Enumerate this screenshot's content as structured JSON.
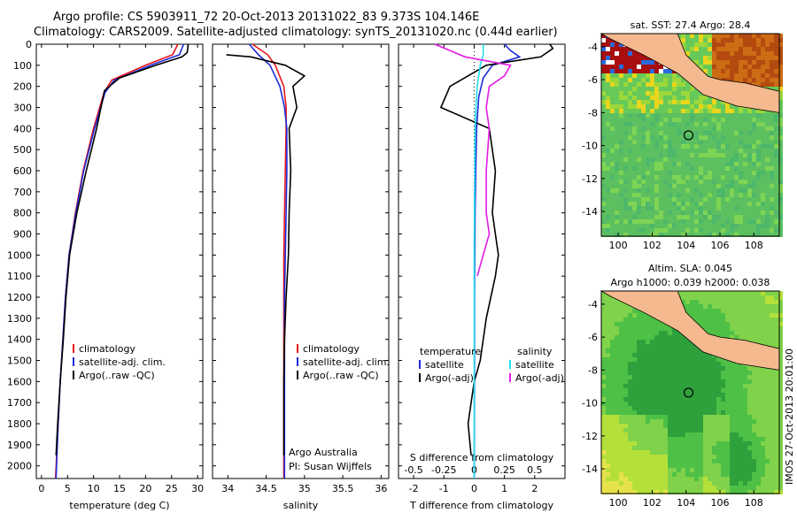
{
  "header": {
    "line1": "Argo profile: CS 5903911_72 20-Oct-2013 20131022_83 9.373S 104.146E",
    "line2": "Climatology: CARS2009. Satellite-adjusted climatology: synTS_20131020.nc (0.44d earlier)"
  },
  "side_label": "IMOS 27-Oct-2013 20:01:00",
  "colors": {
    "clim": "#e8151c",
    "sat": "#1c2ad8",
    "argo": "#000000",
    "sat_sal": "#22e0ee",
    "argo_sal": "#e61ae6",
    "land": "#f5b98f"
  },
  "chart_data": [
    {
      "type": "line",
      "id": "temperature",
      "xlabel": "temperature (deg C)",
      "xlim": [
        -1,
        31
      ],
      "xticks": [
        0,
        5,
        10,
        15,
        20,
        25,
        30
      ],
      "yticks": [
        0,
        100,
        200,
        300,
        400,
        500,
        600,
        700,
        800,
        900,
        1000,
        1100,
        1200,
        1300,
        1400,
        1500,
        1600,
        1700,
        1800,
        1900,
        2000
      ],
      "ylim": [
        2060,
        0
      ],
      "legend": [
        "climatology",
        "satellite-adj. clim.",
        "Argo(..raw -QC)"
      ],
      "series": [
        {
          "name": "climatology",
          "color": "clim",
          "x": [
            26.2,
            25.2,
            20,
            13.5,
            12,
            10,
            8,
            6.5,
            5.3,
            4.6,
            4.1,
            3.6,
            3.2,
            2.7
          ],
          "y": [
            0,
            50,
            100,
            170,
            230,
            400,
            600,
            800,
            1000,
            1200,
            1400,
            1600,
            1800,
            2060
          ]
        },
        {
          "name": "satellite-adj. clim.",
          "color": "sat",
          "x": [
            27.3,
            26.5,
            21,
            14,
            12.2,
            10.2,
            8.1,
            6.6,
            5.3,
            4.6,
            4.1,
            3.6,
            3.2,
            2.8
          ],
          "y": [
            0,
            50,
            100,
            170,
            230,
            400,
            600,
            800,
            1000,
            1200,
            1400,
            1600,
            1800,
            2060
          ]
        },
        {
          "name": "Argo(..raw -QC)",
          "color": "argo",
          "x": [
            28.2,
            28,
            27,
            22,
            15,
            12.1,
            10.6,
            8.6,
            6.8,
            5.4,
            4.7,
            4.2,
            3.6,
            3.1,
            2.8
          ],
          "y": [
            0,
            40,
            60,
            100,
            160,
            220,
            400,
            600,
            800,
            1000,
            1200,
            1400,
            1600,
            1800,
            1950
          ]
        }
      ]
    },
    {
      "type": "line",
      "id": "salinity",
      "xlabel": "salinity",
      "xlim": [
        33.8,
        36.1
      ],
      "xticks": [
        34,
        34.5,
        35,
        35.5,
        36
      ],
      "ylim": [
        2060,
        0
      ],
      "legend": [
        "climatology",
        "satellite-adj. clim.",
        "Argo(..raw -QC)"
      ],
      "annotations": [
        "Argo Australia",
        "PI: Susan Wijffels"
      ],
      "series": [
        {
          "name": "climatology",
          "color": "clim",
          "x": [
            34.32,
            34.52,
            34.62,
            34.73,
            34.76,
            34.76,
            34.75,
            34.74,
            34.73,
            34.73,
            34.73,
            34.73,
            34.73,
            34.73
          ],
          "y": [
            0,
            50,
            100,
            200,
            300,
            400,
            600,
            800,
            1000,
            1200,
            1400,
            1600,
            1800,
            2060
          ]
        },
        {
          "name": "satellite-adj. clim.",
          "color": "sat",
          "x": [
            34.28,
            34.4,
            34.55,
            34.68,
            34.74,
            34.77,
            34.77,
            34.76,
            34.75,
            34.74,
            34.74,
            34.74,
            34.74,
            34.74
          ],
          "y": [
            0,
            50,
            100,
            200,
            300,
            400,
            600,
            800,
            1000,
            1200,
            1400,
            1600,
            1800,
            2060
          ]
        },
        {
          "name": "Argo(..raw -QC)",
          "color": "argo",
          "x": [
            33.98,
            34.3,
            34.75,
            35.0,
            34.85,
            34.9,
            34.8,
            34.82,
            34.8,
            34.79,
            34.76,
            34.74,
            34.73,
            34.73
          ],
          "y": [
            50,
            60,
            100,
            150,
            200,
            300,
            400,
            600,
            800,
            1000,
            1200,
            1400,
            1600,
            1950
          ]
        }
      ]
    },
    {
      "type": "line",
      "id": "difference",
      "xlabel": "T difference from climatology",
      "xlabel_top": "S difference from climatology",
      "xlim": [
        -2.5,
        3
      ],
      "xticks": [
        -2,
        -1,
        0,
        1,
        2
      ],
      "top_ticks": [
        "-0.5",
        "-0.25",
        "0",
        "0.25",
        "0.5"
      ],
      "ylim": [
        2060,
        0
      ],
      "legend_headers": [
        "temperature",
        "salinity"
      ],
      "legend": [
        "satellite",
        "Argo(-adj)",
        "satellite",
        "Argo(-adj)"
      ],
      "series": [
        {
          "name": "satellite",
          "group": "temperature",
          "color": "sat",
          "x": [
            1.0,
            1.2,
            1.5,
            0.6,
            0.3,
            0.15,
            0.08,
            0.05,
            0.03,
            0.02,
            0.01,
            0.01,
            0.01,
            0.0
          ],
          "y": [
            0,
            30,
            60,
            100,
            160,
            250,
            400,
            600,
            800,
            1000,
            1200,
            1400,
            1600,
            2060
          ]
        },
        {
          "name": "Argo(-adj)",
          "group": "temperature",
          "color": "argo",
          "x": [
            2.5,
            2.6,
            2.2,
            0.4,
            -0.8,
            -1.1,
            0.5,
            0.7,
            0.6,
            0.8,
            0.7,
            0.4,
            0.2,
            0.0,
            -0.1,
            -0.2,
            -0.1
          ],
          "y": [
            0,
            20,
            60,
            100,
            200,
            300,
            400,
            600,
            800,
            1000,
            1100,
            1300,
            1500,
            1600,
            1700,
            1800,
            1950
          ]
        },
        {
          "name": "satellite",
          "group": "salinity",
          "color": "sat_sal",
          "x": [
            0.3,
            0.3,
            0.2,
            0.1,
            0.06,
            0.03,
            0.02,
            0.01,
            0.0,
            0.0,
            0.0,
            0.0
          ],
          "y": [
            0,
            50,
            100,
            200,
            300,
            400,
            600,
            800,
            1000,
            1400,
            1800,
            2060
          ]
        },
        {
          "name": "Argo(-adj)",
          "group": "salinity",
          "color": "argo_sal",
          "x": [
            -1.3,
            -0.3,
            1.2,
            1.0,
            0.5,
            0.4,
            0.5,
            0.4,
            0.4,
            0.5,
            0.3,
            0.1
          ],
          "y": [
            0,
            60,
            100,
            150,
            200,
            300,
            400,
            600,
            800,
            900,
            1000,
            1100
          ]
        }
      ]
    },
    {
      "type": "heatmap",
      "id": "sst-map",
      "title": "sat. SST: 27.4  Argo: 28.4",
      "xticks": [
        100,
        102,
        104,
        106,
        108
      ],
      "yticks": [
        -4,
        -6,
        -8,
        -10,
        -12,
        -14
      ],
      "xlim": [
        99,
        109.5
      ],
      "ylim": [
        -15.5,
        -3.2
      ],
      "argo_location": [
        104.146,
        -9.373
      ]
    },
    {
      "type": "heatmap",
      "id": "sla-map",
      "title": "Altim. SLA: 0.045",
      "subtitle": "Argo h1000: 0.039 h2000: 0.038",
      "xticks": [
        100,
        102,
        104,
        106,
        108
      ],
      "yticks": [
        -4,
        -6,
        -8,
        -10,
        -12,
        -14
      ],
      "xlim": [
        99,
        109.5
      ],
      "ylim": [
        -15.5,
        -3.2
      ],
      "argo_location": [
        104.146,
        -9.373
      ]
    }
  ]
}
